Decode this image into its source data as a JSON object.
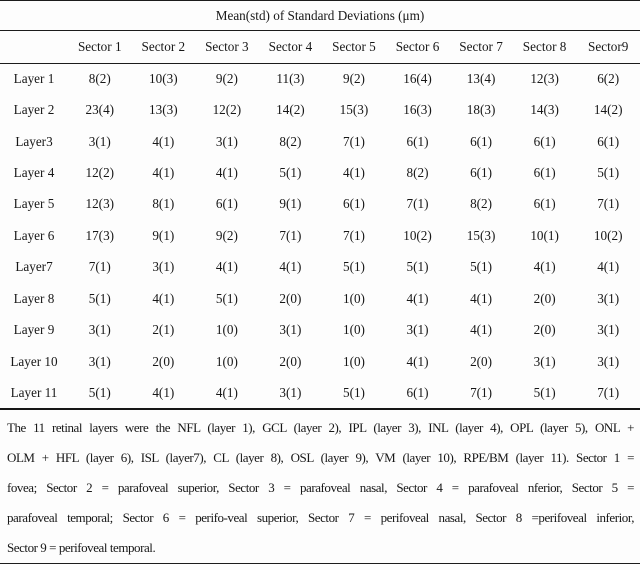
{
  "title": "Mean(std) of Standard Deviations (μm)",
  "table": {
    "columns": [
      "Sector 1",
      "Sector 2",
      "Sector 3",
      "Sector 4",
      "Sector 5",
      "Sector 6",
      "Sector 7",
      "Sector 8",
      "Sector9"
    ],
    "rows": [
      {
        "label": "Layer 1",
        "values": [
          "8(2)",
          "10(3)",
          "9(2)",
          "11(3)",
          "9(2)",
          "16(4)",
          "13(4)",
          "12(3)",
          "6(2)"
        ]
      },
      {
        "label": "Layer 2",
        "values": [
          "23(4)",
          "13(3)",
          "12(2)",
          "14(2)",
          "15(3)",
          "16(3)",
          "18(3)",
          "14(3)",
          "14(2)"
        ]
      },
      {
        "label": "Layer3",
        "values": [
          "3(1)",
          "4(1)",
          "3(1)",
          "8(2)",
          "7(1)",
          "6(1)",
          "6(1)",
          "6(1)",
          "6(1)"
        ]
      },
      {
        "label": "Layer 4",
        "values": [
          "12(2)",
          "4(1)",
          "4(1)",
          "5(1)",
          "4(1)",
          "8(2)",
          "6(1)",
          "6(1)",
          "5(1)"
        ]
      },
      {
        "label": "Layer 5",
        "values": [
          "12(3)",
          "8(1)",
          "6(1)",
          "9(1)",
          "6(1)",
          "7(1)",
          "8(2)",
          "6(1)",
          "7(1)"
        ]
      },
      {
        "label": "Layer 6",
        "values": [
          "17(3)",
          "9(1)",
          "9(2)",
          "7(1)",
          "7(1)",
          "10(2)",
          "15(3)",
          "10(1)",
          "10(2)"
        ]
      },
      {
        "label": "Layer7",
        "values": [
          "7(1)",
          "3(1)",
          "4(1)",
          "4(1)",
          "5(1)",
          "5(1)",
          "5(1)",
          "4(1)",
          "4(1)"
        ]
      },
      {
        "label": "Layer 8",
        "values": [
          "5(1)",
          "4(1)",
          "5(1)",
          "2(0)",
          "1(0)",
          "4(1)",
          "4(1)",
          "2(0)",
          "3(1)"
        ]
      },
      {
        "label": "Layer 9",
        "values": [
          "3(1)",
          "2(1)",
          "1(0)",
          "3(1)",
          "1(0)",
          "3(1)",
          "4(1)",
          "2(0)",
          "3(1)"
        ]
      },
      {
        "label": "Layer 10",
        "values": [
          "3(1)",
          "2(0)",
          "1(0)",
          "2(0)",
          "1(0)",
          "4(1)",
          "2(0)",
          "3(1)",
          "3(1)"
        ]
      },
      {
        "label": "Layer 11",
        "values": [
          "5(1)",
          "4(1)",
          "4(1)",
          "3(1)",
          "5(1)",
          "6(1)",
          "7(1)",
          "5(1)",
          "7(1)"
        ]
      }
    ]
  },
  "footnote": {
    "lines": [
      "The 11 retinal layers were the NFL (layer 1), GCL (layer 2), IPL (layer 3), INL (layer 4), OPL (layer 5), ONL +",
      "OLM + HFL (layer 6), ISL (layer7), CL (layer 8), OSL (layer 9), VM (layer 10), RPE/BM (layer 11). Sector 1 =",
      "fovea; Sector 2 = parafoveal superior, Sector 3 = parafoveal nasal, Sector 4 = parafoveal nferior, Sector 5 =",
      "parafoveal temporal; Sector 6 = perifo-veal superior, Sector 7 = perifoveal nasal, Sector 8 =perifoveal inferior,",
      "Sector 9 = perifoveal temporal."
    ]
  }
}
